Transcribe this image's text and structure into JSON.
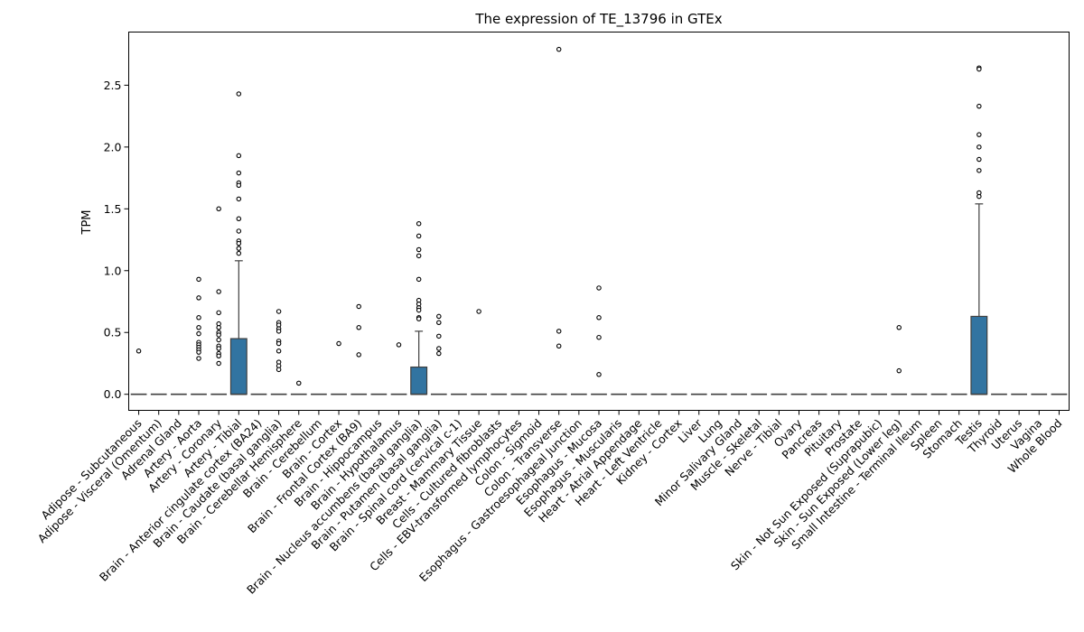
{
  "chart_data": {
    "type": "box",
    "title": "The expression of TE_13796 in GTEx",
    "xlabel": "",
    "ylabel": "TPM",
    "ylim": [
      -0.13,
      2.93
    ],
    "yticks": [
      "0.0",
      "0.5",
      "1.0",
      "1.5",
      "2.0",
      "2.5"
    ],
    "box_color": "#3274a1",
    "grid": false,
    "categories": [
      {
        "name": "Adipose - Subcutaneous",
        "q1": 0,
        "median": 0,
        "q3": 0,
        "whisker_low": 0,
        "whisker_high": 0,
        "outliers": [
          0.35
        ]
      },
      {
        "name": "Adipose - Visceral (Omentum)",
        "q1": 0,
        "median": 0,
        "q3": 0,
        "whisker_low": 0,
        "whisker_high": 0,
        "outliers": []
      },
      {
        "name": "Adrenal Gland",
        "q1": 0,
        "median": 0,
        "q3": 0,
        "whisker_low": 0,
        "whisker_high": 0,
        "outliers": []
      },
      {
        "name": "Artery - Aorta",
        "q1": 0,
        "median": 0,
        "q3": 0,
        "whisker_low": 0,
        "whisker_high": 0,
        "outliers": [
          0.93,
          0.78,
          0.62,
          0.54,
          0.49,
          0.42,
          0.4,
          0.38,
          0.36,
          0.34,
          0.29
        ]
      },
      {
        "name": "Artery - Coronary",
        "q1": 0,
        "median": 0,
        "q3": 0,
        "whisker_low": 0,
        "whisker_high": 0,
        "outliers": [
          1.5,
          0.83,
          0.66,
          0.57,
          0.54,
          0.5,
          0.48,
          0.44,
          0.39,
          0.37,
          0.33,
          0.31,
          0.25
        ]
      },
      {
        "name": "Artery - Tibial",
        "q1": 0,
        "median": 0,
        "q3": 0.45,
        "whisker_low": 0,
        "whisker_high": 1.08,
        "outliers": [
          2.43,
          1.93,
          1.79,
          1.71,
          1.69,
          1.58,
          1.42,
          1.32,
          1.24,
          1.22,
          1.18,
          1.14
        ]
      },
      {
        "name": "Brain - Anterior cingulate cortex (BA24)",
        "q1": 0,
        "median": 0,
        "q3": 0,
        "whisker_low": 0,
        "whisker_high": 0,
        "outliers": []
      },
      {
        "name": "Brain - Caudate (basal ganglia)",
        "q1": 0,
        "median": 0,
        "q3": 0,
        "whisker_low": 0,
        "whisker_high": 0,
        "outliers": [
          0.67,
          0.58,
          0.56,
          0.53,
          0.51,
          0.43,
          0.41,
          0.35,
          0.26,
          0.23,
          0.2
        ]
      },
      {
        "name": "Brain - Cerebellar Hemisphere",
        "q1": 0,
        "median": 0,
        "q3": 0,
        "whisker_low": 0,
        "whisker_high": 0,
        "outliers": [
          0.09
        ]
      },
      {
        "name": "Brain - Cerebellum",
        "q1": 0,
        "median": 0,
        "q3": 0,
        "whisker_low": 0,
        "whisker_high": 0,
        "outliers": []
      },
      {
        "name": "Brain - Cortex",
        "q1": 0,
        "median": 0,
        "q3": 0,
        "whisker_low": 0,
        "whisker_high": 0,
        "outliers": [
          0.41
        ]
      },
      {
        "name": "Brain - Frontal Cortex (BA9)",
        "q1": 0,
        "median": 0,
        "q3": 0,
        "whisker_low": 0,
        "whisker_high": 0,
        "outliers": [
          0.71,
          0.54,
          0.32
        ]
      },
      {
        "name": "Brain - Hippocampus",
        "q1": 0,
        "median": 0,
        "q3": 0,
        "whisker_low": 0,
        "whisker_high": 0,
        "outliers": []
      },
      {
        "name": "Brain - Hypothalamus",
        "q1": 0,
        "median": 0,
        "q3": 0,
        "whisker_low": 0,
        "whisker_high": 0,
        "outliers": [
          0.4
        ]
      },
      {
        "name": "Brain - Nucleus accumbens (basal ganglia)",
        "q1": 0,
        "median": 0,
        "q3": 0.22,
        "whisker_low": 0,
        "whisker_high": 0.51,
        "outliers": [
          1.38,
          1.28,
          1.17,
          1.12,
          0.93,
          0.76,
          0.73,
          0.7,
          0.68,
          0.62,
          0.61
        ]
      },
      {
        "name": "Brain - Putamen (basal ganglia)",
        "q1": 0,
        "median": 0,
        "q3": 0,
        "whisker_low": 0,
        "whisker_high": 0,
        "outliers": [
          0.63,
          0.58,
          0.47,
          0.37,
          0.33
        ]
      },
      {
        "name": "Brain - Spinal cord (cervical c-1)",
        "q1": 0,
        "median": 0,
        "q3": 0,
        "whisker_low": 0,
        "whisker_high": 0,
        "outliers": []
      },
      {
        "name": "Breast - Mammary Tissue",
        "q1": 0,
        "median": 0,
        "q3": 0,
        "whisker_low": 0,
        "whisker_high": 0,
        "outliers": [
          0.67
        ]
      },
      {
        "name": "Cells - Cultured fibroblasts",
        "q1": 0,
        "median": 0,
        "q3": 0,
        "whisker_low": 0,
        "whisker_high": 0,
        "outliers": []
      },
      {
        "name": "Cells - EBV-transformed lymphocytes",
        "q1": 0,
        "median": 0,
        "q3": 0,
        "whisker_low": 0,
        "whisker_high": 0,
        "outliers": []
      },
      {
        "name": "Colon - Sigmoid",
        "q1": 0,
        "median": 0,
        "q3": 0,
        "whisker_low": 0,
        "whisker_high": 0,
        "outliers": []
      },
      {
        "name": "Colon - Transverse",
        "q1": 0,
        "median": 0,
        "q3": 0,
        "whisker_low": 0,
        "whisker_high": 0,
        "outliers": [
          2.79,
          0.51,
          0.39
        ]
      },
      {
        "name": "Esophagus - Gastroesophageal Junction",
        "q1": 0,
        "median": 0,
        "q3": 0,
        "whisker_low": 0,
        "whisker_high": 0,
        "outliers": []
      },
      {
        "name": "Esophagus - Mucosa",
        "q1": 0,
        "median": 0,
        "q3": 0,
        "whisker_low": 0,
        "whisker_high": 0,
        "outliers": [
          0.86,
          0.62,
          0.46,
          0.16
        ]
      },
      {
        "name": "Esophagus - Muscularis",
        "q1": 0,
        "median": 0,
        "q3": 0,
        "whisker_low": 0,
        "whisker_high": 0,
        "outliers": []
      },
      {
        "name": "Heart - Atrial Appendage",
        "q1": 0,
        "median": 0,
        "q3": 0,
        "whisker_low": 0,
        "whisker_high": 0,
        "outliers": []
      },
      {
        "name": "Heart - Left Ventricle",
        "q1": 0,
        "median": 0,
        "q3": 0,
        "whisker_low": 0,
        "whisker_high": 0,
        "outliers": []
      },
      {
        "name": "Kidney - Cortex",
        "q1": 0,
        "median": 0,
        "q3": 0,
        "whisker_low": 0,
        "whisker_high": 0,
        "outliers": []
      },
      {
        "name": "Liver",
        "q1": 0,
        "median": 0,
        "q3": 0,
        "whisker_low": 0,
        "whisker_high": 0,
        "outliers": []
      },
      {
        "name": "Lung",
        "q1": 0,
        "median": 0,
        "q3": 0,
        "whisker_low": 0,
        "whisker_high": 0,
        "outliers": []
      },
      {
        "name": "Minor Salivary Gland",
        "q1": 0,
        "median": 0,
        "q3": 0,
        "whisker_low": 0,
        "whisker_high": 0,
        "outliers": []
      },
      {
        "name": "Muscle - Skeletal",
        "q1": 0,
        "median": 0,
        "q3": 0,
        "whisker_low": 0,
        "whisker_high": 0,
        "outliers": []
      },
      {
        "name": "Nerve - Tibial",
        "q1": 0,
        "median": 0,
        "q3": 0,
        "whisker_low": 0,
        "whisker_high": 0,
        "outliers": []
      },
      {
        "name": "Ovary",
        "q1": 0,
        "median": 0,
        "q3": 0,
        "whisker_low": 0,
        "whisker_high": 0,
        "outliers": []
      },
      {
        "name": "Pancreas",
        "q1": 0,
        "median": 0,
        "q3": 0,
        "whisker_low": 0,
        "whisker_high": 0,
        "outliers": []
      },
      {
        "name": "Pituitary",
        "q1": 0,
        "median": 0,
        "q3": 0,
        "whisker_low": 0,
        "whisker_high": 0,
        "outliers": []
      },
      {
        "name": "Prostate",
        "q1": 0,
        "median": 0,
        "q3": 0,
        "whisker_low": 0,
        "whisker_high": 0,
        "outliers": []
      },
      {
        "name": "Skin - Not Sun Exposed (Suprapubic)",
        "q1": 0,
        "median": 0,
        "q3": 0,
        "whisker_low": 0,
        "whisker_high": 0,
        "outliers": []
      },
      {
        "name": "Skin - Sun Exposed (Lower leg)",
        "q1": 0,
        "median": 0,
        "q3": 0,
        "whisker_low": 0,
        "whisker_high": 0,
        "outliers": [
          0.54,
          0.19
        ]
      },
      {
        "name": "Small Intestine - Terminal Ileum",
        "q1": 0,
        "median": 0,
        "q3": 0,
        "whisker_low": 0,
        "whisker_high": 0,
        "outliers": []
      },
      {
        "name": "Spleen",
        "q1": 0,
        "median": 0,
        "q3": 0,
        "whisker_low": 0,
        "whisker_high": 0,
        "outliers": []
      },
      {
        "name": "Stomach",
        "q1": 0,
        "median": 0,
        "q3": 0,
        "whisker_low": 0,
        "whisker_high": 0,
        "outliers": []
      },
      {
        "name": "Testis",
        "q1": 0,
        "median": 0,
        "q3": 0.63,
        "whisker_low": 0,
        "whisker_high": 1.54,
        "outliers": [
          2.64,
          2.63,
          2.33,
          2.1,
          2.0,
          1.9,
          1.81,
          1.63,
          1.6
        ]
      },
      {
        "name": "Thyroid",
        "q1": 0,
        "median": 0,
        "q3": 0,
        "whisker_low": 0,
        "whisker_high": 0,
        "outliers": []
      },
      {
        "name": "Uterus",
        "q1": 0,
        "median": 0,
        "q3": 0,
        "whisker_low": 0,
        "whisker_high": 0,
        "outliers": []
      },
      {
        "name": "Vagina",
        "q1": 0,
        "median": 0,
        "q3": 0,
        "whisker_low": 0,
        "whisker_high": 0,
        "outliers": []
      },
      {
        "name": "Whole Blood",
        "q1": 0,
        "median": 0,
        "q3": 0,
        "whisker_low": 0,
        "whisker_high": 0,
        "outliers": []
      }
    ]
  }
}
